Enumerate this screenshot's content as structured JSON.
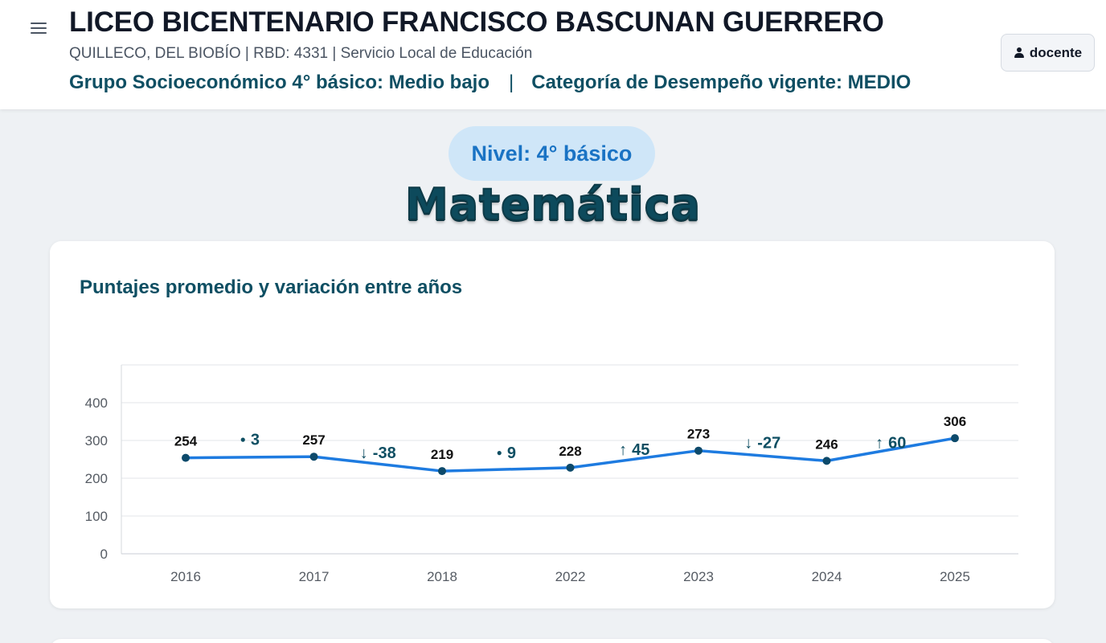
{
  "header": {
    "menu_icon": "hamburger-menu-icon",
    "school_name": "LICEO BICENTENARIO FRANCISCO BASCUNAN GUERRERO",
    "subtitle": "QUILLECO, DEL BIOBÍO | RBD: 4331 | Servicio Local de Educación",
    "socioeconomic": "Grupo Socioeconómico 4° básico: Medio bajo",
    "separator": "|",
    "performance": "Categoría de Desempeño vigente: MEDIO",
    "user_label": "docente",
    "user_icon": "user-icon"
  },
  "level_label": "Nivel: 4° básico",
  "subject": "Matemática",
  "card": {
    "title": "Puntajes promedio y variación entre años"
  },
  "colors": {
    "line": "#1e7be0",
    "point": "#0d4a6b",
    "accent_text": "#0f4f63",
    "pill_bg": "#cfe6f8",
    "pill_text": "#1a73c4"
  },
  "chart_data": {
    "type": "line",
    "title": "Puntajes promedio y variación entre años",
    "categories": [
      "2016",
      "2017",
      "2018",
      "2022",
      "2023",
      "2024",
      "2025"
    ],
    "series": [
      {
        "values": [
          254,
          257,
          219,
          228,
          273,
          246,
          306
        ]
      }
    ],
    "variations": [
      {
        "label": "3",
        "direction": "neutral"
      },
      {
        "label": "-38",
        "direction": "down"
      },
      {
        "label": "9",
        "direction": "neutral"
      },
      {
        "label": "45",
        "direction": "up"
      },
      {
        "label": "-27",
        "direction": "down"
      },
      {
        "label": "60",
        "direction": "up"
      }
    ],
    "yticks": [
      0,
      100,
      200,
      300,
      400
    ],
    "ylim": [
      0,
      500
    ],
    "grid": true,
    "legend": "none"
  }
}
